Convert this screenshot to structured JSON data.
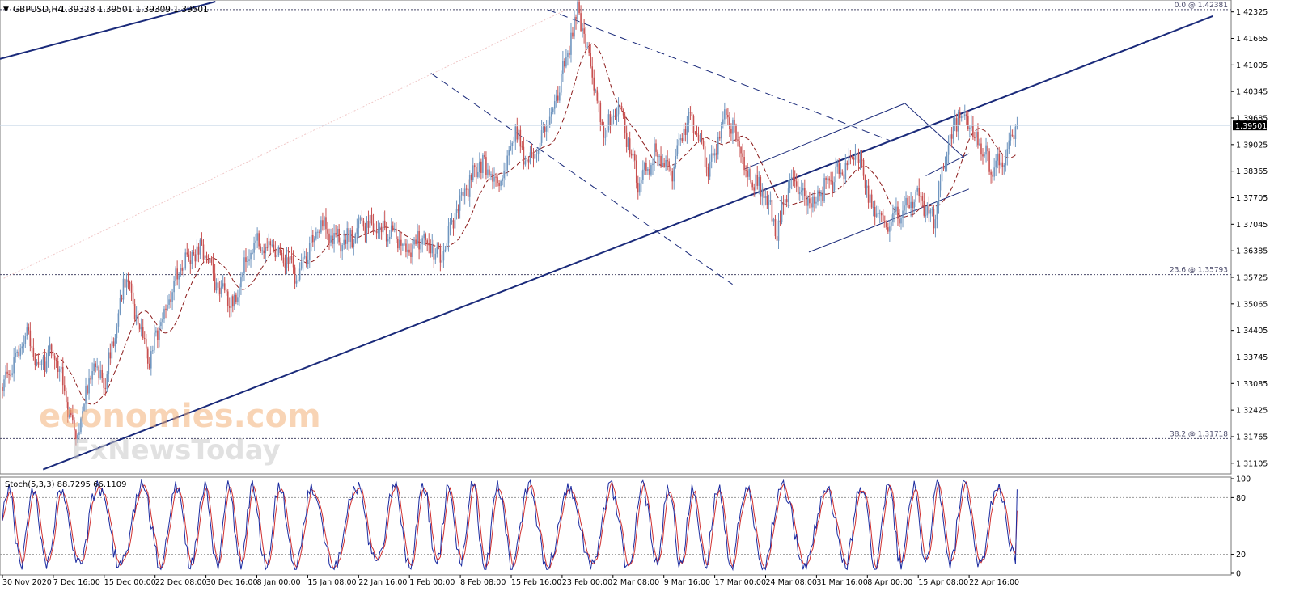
{
  "header": {
    "symbol_label": "GBPUSD,H4",
    "ohlc_text": "1.39328 1.39501 1.39309 1.39501",
    "arrow_glyph": "▼"
  },
  "watermark": {
    "line1": "economies.com",
    "line2": "FxNewsToday"
  },
  "colors": {
    "bull": "#6f95bf",
    "bear": "#c85050",
    "ma": "#8b1a1a",
    "trend": "#1a2a7a",
    "fib": "#4a4a6a",
    "stoch_main": "#1a2aa0",
    "stoch_signal": "#d03030",
    "price_tag_bg": "#000000",
    "grid": "#bbbbbb"
  },
  "chart_data": [
    {
      "type": "candlestick",
      "symbol": "GBPUSD",
      "timeframe": "H4",
      "ylim": [
        1.3088,
        1.4258
      ],
      "x_tick_labels": [
        "30 Nov 2020",
        "7 Dec 16:00",
        "15 Dec 00:00",
        "22 Dec 08:00",
        "30 Dec 16:00",
        "8 Jan 00:00",
        "15 Jan 08:00",
        "22 Jan 16:00",
        "1 Feb 00:00",
        "8 Feb 08:00",
        "15 Feb 16:00",
        "23 Feb 00:00",
        "2 Mar 08:00",
        "9 Mar 16:00",
        "17 Mar 00:00",
        "24 Mar 08:00",
        "31 Mar 16:00",
        "8 Apr 00:00",
        "15 Apr 08:00",
        "22 Apr 16:00"
      ],
      "y_tick_labels": [
        "1.42325",
        "1.41665",
        "1.41005",
        "1.40345",
        "1.39685",
        "1.39025",
        "1.38365",
        "1.37705",
        "1.37045",
        "1.36385",
        "1.35725",
        "1.35065",
        "1.34405",
        "1.33745",
        "1.33085",
        "1.32425",
        "1.31765",
        "1.31105"
      ],
      "y_tick_values": [
        1.42325,
        1.41665,
        1.41005,
        1.40345,
        1.39685,
        1.39025,
        1.38365,
        1.37705,
        1.37045,
        1.36385,
        1.35725,
        1.35065,
        1.34405,
        1.33745,
        1.33085,
        1.32425,
        1.31765,
        1.31105
      ],
      "current_price": 1.39501,
      "current_price_label": "1.39501",
      "fibonacci_levels": [
        {
          "label": "0.0 @ 1.42381",
          "value": 1.42381
        },
        {
          "label": "23.6 @ 1.35793",
          "value": 1.35793
        },
        {
          "label": "38.2 @ 1.31718",
          "value": 1.31718
        }
      ],
      "anchors": [
        [
          0,
          1.331
        ],
        [
          15,
          1.342
        ],
        [
          22,
          1.335
        ],
        [
          32,
          1.339
        ],
        [
          45,
          1.316
        ],
        [
          55,
          1.336
        ],
        [
          63,
          1.331
        ],
        [
          75,
          1.358
        ],
        [
          90,
          1.337
        ],
        [
          100,
          1.35
        ],
        [
          110,
          1.361
        ],
        [
          122,
          1.364
        ],
        [
          132,
          1.355
        ],
        [
          142,
          1.35
        ],
        [
          152,
          1.366
        ],
        [
          165,
          1.365
        ],
        [
          180,
          1.358
        ],
        [
          195,
          1.371
        ],
        [
          208,
          1.365
        ],
        [
          220,
          1.37
        ],
        [
          235,
          1.369
        ],
        [
          248,
          1.364
        ],
        [
          258,
          1.367
        ],
        [
          268,
          1.362
        ],
        [
          278,
          1.374
        ],
        [
          292,
          1.386
        ],
        [
          304,
          1.379
        ],
        [
          314,
          1.393
        ],
        [
          322,
          1.385
        ],
        [
          334,
          1.395
        ],
        [
          345,
          1.412
        ],
        [
          352,
          1.4238
        ],
        [
          360,
          1.41
        ],
        [
          368,
          1.393
        ],
        [
          378,
          1.399
        ],
        [
          390,
          1.38
        ],
        [
          400,
          1.389
        ],
        [
          410,
          1.384
        ],
        [
          420,
          1.398
        ],
        [
          432,
          1.385
        ],
        [
          444,
          1.398
        ],
        [
          456,
          1.383
        ],
        [
          466,
          1.378
        ],
        [
          474,
          1.369
        ],
        [
          484,
          1.382
        ],
        [
          494,
          1.375
        ],
        [
          504,
          1.38
        ],
        [
          514,
          1.384
        ],
        [
          522,
          1.39
        ],
        [
          532,
          1.375
        ],
        [
          542,
          1.369
        ],
        [
          550,
          1.374
        ],
        [
          560,
          1.377
        ],
        [
          570,
          1.372
        ],
        [
          578,
          1.388
        ],
        [
          586,
          1.399
        ],
        [
          596,
          1.392
        ],
        [
          606,
          1.384
        ],
        [
          616,
          1.389
        ],
        [
          621,
          1.395
        ]
      ],
      "ma_period_note": "",
      "trendlines": [
        {
          "from": [
            -0.05,
            1.4075
          ],
          "to": [
            0.175,
            1.4258
          ]
        },
        {
          "from": [
            0.035,
            1.3095
          ],
          "to": [
            0.985,
            1.4222
          ]
        }
      ],
      "channel_lines": [
        {
          "style": "dashed",
          "from": [
            0.35,
            1.408
          ],
          "to": [
            0.595,
            1.3555
          ]
        },
        {
          "style": "dashed",
          "from": [
            0.445,
            1.4238
          ],
          "to": [
            0.725,
            1.391
          ]
        },
        {
          "style": "solid",
          "from": [
            0.605,
            1.3842
          ],
          "to": [
            0.735,
            1.4005
          ]
        },
        {
          "style": "solid",
          "from": [
            0.657,
            1.3635
          ],
          "to": [
            0.787,
            1.3792
          ]
        },
        {
          "style": "solid",
          "from": [
            0.735,
            1.4005
          ],
          "to": [
            0.783,
            1.387
          ]
        },
        {
          "style": "solid",
          "from": [
            0.752,
            1.3825
          ],
          "to": [
            0.787,
            1.388
          ]
        }
      ]
    },
    {
      "type": "line",
      "indicator_label": "Stoch(5,3,3) 88.7295 66.1109",
      "series": [
        {
          "name": "Main",
          "last": 88.7295
        },
        {
          "name": "Signal",
          "last": 66.1109
        }
      ],
      "ylim": [
        0,
        100
      ],
      "y_tick_labels": [
        "100",
        "80",
        "20",
        "0"
      ],
      "y_tick_values": [
        100,
        80,
        20,
        0
      ],
      "levels": [
        80,
        20
      ]
    }
  ]
}
